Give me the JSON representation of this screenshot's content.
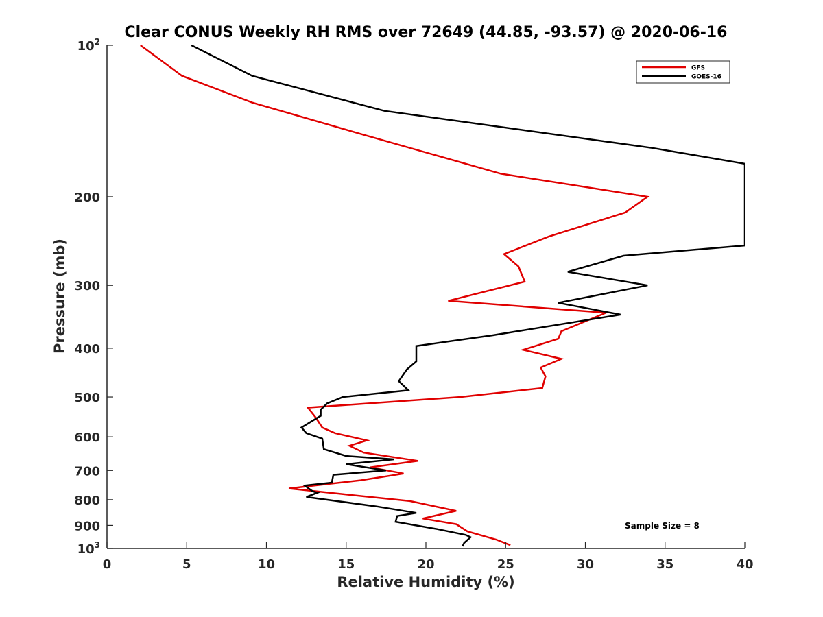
{
  "chart_data": {
    "type": "line",
    "title": "Clear CONUS Weekly RH RMS over 72649 (44.85, -93.57) @ 2020-06-16",
    "xlabel": "Relative Humidity (%)",
    "ylabel": "Pressure (mb)",
    "xlim": [
      0,
      40
    ],
    "ylim": [
      100,
      1000
    ],
    "yscale": "log",
    "y_reversed": true,
    "x_ticks": [
      0,
      5,
      10,
      15,
      20,
      25,
      30,
      35,
      40
    ],
    "y_ticks": [
      {
        "value": 100,
        "base": "10",
        "exp": "2"
      },
      {
        "value": 200,
        "label": "200"
      },
      {
        "value": 300,
        "label": "300"
      },
      {
        "value": 400,
        "label": "400"
      },
      {
        "value": 500,
        "label": "500"
      },
      {
        "value": 600,
        "label": "600"
      },
      {
        "value": 700,
        "label": "700"
      },
      {
        "value": 800,
        "label": "800"
      },
      {
        "value": 900,
        "label": "900"
      },
      {
        "value": 1000,
        "base": "10",
        "exp": "3"
      }
    ],
    "grid": false,
    "legend_position": "top-right",
    "series": [
      {
        "name": "GFS",
        "color": "#e00000",
        "points": [
          [
            2.1,
            100
          ],
          [
            4.7,
            115
          ],
          [
            9.1,
            130
          ],
          [
            15.9,
            150
          ],
          [
            24.7,
            180
          ],
          [
            33.9,
            200
          ],
          [
            32.5,
            215
          ],
          [
            27.7,
            240
          ],
          [
            24.9,
            260
          ],
          [
            25.8,
            275
          ],
          [
            26.2,
            295
          ],
          [
            21.4,
            322
          ],
          [
            31.3,
            340
          ],
          [
            28.5,
            370
          ],
          [
            28.3,
            383
          ],
          [
            26.1,
            403
          ],
          [
            28.5,
            420
          ],
          [
            27.2,
            437
          ],
          [
            27.5,
            455
          ],
          [
            27.3,
            480
          ],
          [
            22.2,
            500
          ],
          [
            12.6,
            525
          ],
          [
            13.1,
            550
          ],
          [
            13.5,
            575
          ],
          [
            14.3,
            590
          ],
          [
            16.3,
            610
          ],
          [
            15.2,
            625
          ],
          [
            16.1,
            645
          ],
          [
            19.5,
            670
          ],
          [
            16.5,
            690
          ],
          [
            18.6,
            710
          ],
          [
            15.9,
            732
          ],
          [
            11.4,
            760
          ],
          [
            14.8,
            780
          ],
          [
            19.0,
            805
          ],
          [
            21.9,
            842
          ],
          [
            19.8,
            872
          ],
          [
            21.9,
            895
          ],
          [
            22.6,
            925
          ],
          [
            24.4,
            960
          ],
          [
            25.3,
            985
          ]
        ]
      },
      {
        "name": "GOES-16",
        "color": "#000000",
        "points": [
          [
            5.3,
            100
          ],
          [
            9.1,
            115
          ],
          [
            17.4,
            135
          ],
          [
            34.2,
            160
          ],
          [
            40.0,
            172
          ],
          [
            40.0,
            250
          ],
          [
            32.4,
            262
          ],
          [
            28.9,
            282
          ],
          [
            33.9,
            300
          ],
          [
            28.3,
            325
          ],
          [
            32.2,
            343
          ],
          [
            24.2,
            377
          ],
          [
            19.4,
            396
          ],
          [
            19.4,
            425
          ],
          [
            18.8,
            441
          ],
          [
            18.3,
            465
          ],
          [
            18.9,
            485
          ],
          [
            14.8,
            500
          ],
          [
            13.8,
            515
          ],
          [
            13.4,
            530
          ],
          [
            13.4,
            545
          ],
          [
            12.2,
            575
          ],
          [
            12.5,
            590
          ],
          [
            13.5,
            605
          ],
          [
            13.6,
            635
          ],
          [
            15.0,
            655
          ],
          [
            18.0,
            665
          ],
          [
            15.0,
            680
          ],
          [
            17.5,
            700
          ],
          [
            14.2,
            714
          ],
          [
            14.1,
            740
          ],
          [
            12.4,
            750
          ],
          [
            12.9,
            770
          ],
          [
            13.2,
            775
          ],
          [
            12.5,
            790
          ],
          [
            16.9,
            825
          ],
          [
            19.4,
            850
          ],
          [
            18.2,
            862
          ],
          [
            18.1,
            885
          ],
          [
            20.7,
            915
          ],
          [
            22.5,
            940
          ],
          [
            22.8,
            950
          ],
          [
            22.4,
            975
          ],
          [
            22.3,
            990
          ]
        ]
      }
    ],
    "annotation": "Sample Size = 8"
  }
}
